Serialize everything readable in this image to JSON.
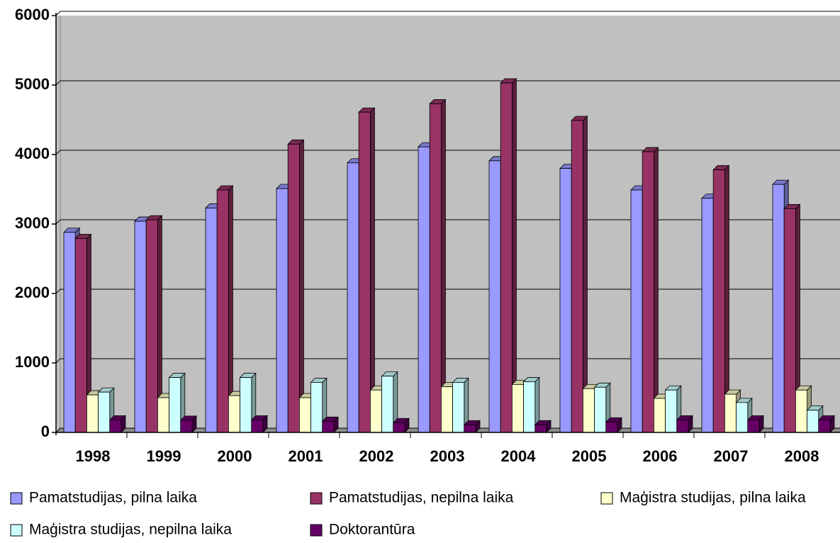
{
  "chart_data": {
    "type": "bar",
    "categories": [
      "1998",
      "1999",
      "2000",
      "2001",
      "2002",
      "2003",
      "2004",
      "2005",
      "2006",
      "2007",
      "2008"
    ],
    "series": [
      {
        "name": "Pamatstudijas, pilna laika",
        "color": "#9999ff",
        "values": [
          2880,
          3040,
          3230,
          3510,
          3880,
          4110,
          3910,
          3800,
          3490,
          3370,
          3570
        ]
      },
      {
        "name": "Pamatstudijas, nepilna laika",
        "color": "#993366",
        "values": [
          2790,
          3060,
          3490,
          4150,
          4610,
          4730,
          5030,
          4490,
          4040,
          3780,
          3220
        ]
      },
      {
        "name": "Maģistra studijas, pilna laika",
        "color": "#ffffcc",
        "values": [
          540,
          500,
          530,
          500,
          610,
          657,
          690,
          630,
          490,
          550,
          610
        ]
      },
      {
        "name": "Maģistra studijas, nepilna laika",
        "color": "#ccffff",
        "values": [
          580,
          790,
          790,
          720,
          810,
          720,
          730,
          650,
          610,
          430,
          320
        ]
      },
      {
        "name": "Doktorantūra",
        "color": "#660066",
        "values": [
          180,
          175,
          180,
          160,
          140,
          110,
          110,
          150,
          180,
          180,
          180
        ]
      }
    ],
    "ylim": [
      0,
      6000
    ],
    "yticks": [
      0,
      1000,
      2000,
      3000,
      4000,
      5000,
      6000
    ],
    "grid": true,
    "legend": "bottom"
  }
}
